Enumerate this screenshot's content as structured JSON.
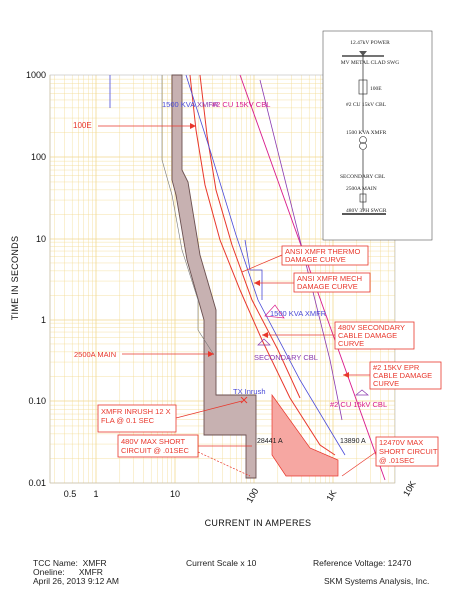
{
  "axes": {
    "x_title": "CURRENT IN AMPERES",
    "y_title": "TIME IN SECONDS",
    "x_ticks": [
      "0.5",
      "1",
      "10",
      "100",
      "1K",
      "10K"
    ],
    "y_ticks": [
      "1000",
      "100",
      "10",
      "1",
      "0.10",
      "0.01"
    ],
    "scale": "log-log"
  },
  "curve_labels": {
    "kva_a": "1500 KVA",
    "cbl_a": "#2 CU 15KV CBL",
    "xmfr_a": "XMFR",
    "kva_xmfr": "1500 KVA XMFR",
    "secondary_cbl": "SECONDARY CBL",
    "cu_cbl": "#2 CU 15kV CBL",
    "tx_inrush": "TX Inrush",
    "a28441": "28441 A",
    "a13890": "13890 A"
  },
  "callouts": {
    "e100": "100E",
    "main2500": "2500A MAIN",
    "thermo": [
      "ANSI XMFR THERMO",
      "DAMAGE CURVE"
    ],
    "mech": [
      "ANSI XMFR MECH",
      "DAMAGE CURVE"
    ],
    "secondary": [
      "480V SECONDARY",
      "CABLE DAMAGE",
      "CURVE"
    ],
    "epr": [
      "#2 15KV EPR",
      "CABLE DAMAGE",
      "CURVE"
    ],
    "inrush": [
      "XMFR INRUSH 12 X",
      "FLA @ 0.1 SEC"
    ],
    "short480": [
      "480V MAX SHORT",
      "CIRCUIT @ .01SEC"
    ],
    "short12470": [
      "12470V MAX",
      "SHORT CIRCUIT",
      "@ .01SEC"
    ]
  },
  "oneline": {
    "source": "12.47kV POWER",
    "swg": "MV METAL CLAD SWG",
    "fuse": "100E",
    "cable": "#2 CU 15kV CBL",
    "xfmr": "1500 KVA XMFR",
    "sec_cable": "SECONDARY CBL",
    "main": "2500A MAIN",
    "lv_swgr": "480V 3PH SWGR"
  },
  "footer": {
    "tcc_name_label": "TCC Name:",
    "tcc_name": "XMFR",
    "oneline_label": "Oneline:",
    "oneline": "XMFR",
    "datetime": "April 26, 2013  9:12 AM",
    "current_scale": "Current Scale   x 10",
    "reference_voltage": "Reference Voltage:  12470",
    "vendor": "SKM Systems Analysis, Inc."
  },
  "colors": {
    "callout_red": "#e8372c",
    "damage_blue": "#4a4ad8",
    "purple": "#8a3ab0",
    "magenta": "#d81b8c",
    "fuse_fill": "#c7b1b1",
    "grid": "#f2d98f"
  }
}
